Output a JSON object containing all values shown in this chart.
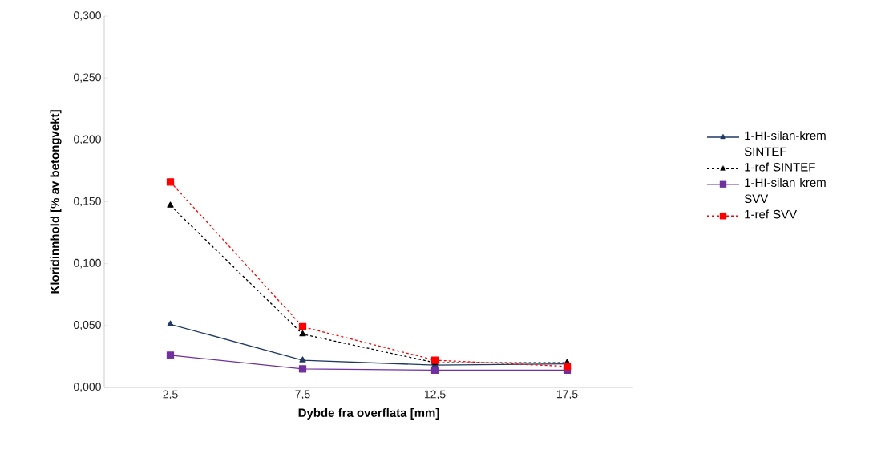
{
  "chart_data": {
    "type": "line",
    "xlabel": "Dybde fra overflata [mm]",
    "ylabel": "Kloridinnhold  [% av betongvekt]",
    "categories": [
      "2,5",
      "7,5",
      "12,5",
      "17,5"
    ],
    "ylim": [
      0,
      0.3
    ],
    "yticks": [
      {
        "value": 0,
        "label": "0,000"
      },
      {
        "value": 0.05,
        "label": "0,050"
      },
      {
        "value": 0.1,
        "label": "0,100"
      },
      {
        "value": 0.15,
        "label": "0,150"
      },
      {
        "value": 0.2,
        "label": "0,200"
      },
      {
        "value": 0.25,
        "label": "0,250"
      },
      {
        "value": 0.3,
        "label": "0,300"
      }
    ],
    "legend": "right",
    "grid": false,
    "series": [
      {
        "name": "1-HI-silan-krem SINTEF",
        "color": "#1f3864",
        "marker": "triangle",
        "line_style": "solid",
        "values": [
          0.051,
          0.022,
          0.018,
          0.019
        ]
      },
      {
        "name": "1-ref SINTEF",
        "color": "#000000",
        "marker": "triangle",
        "line_style": "dashed",
        "values": [
          0.147,
          0.043,
          0.02,
          0.02
        ]
      },
      {
        "name": "1-HI-silan krem SVV",
        "color": "#7030a0",
        "marker": "square",
        "line_style": "solid",
        "values": [
          0.026,
          0.015,
          0.014,
          0.014
        ]
      },
      {
        "name": "1-ref SVV",
        "color": "#ff0000",
        "marker": "square",
        "line_style": "dashed",
        "values": [
          0.166,
          0.049,
          0.022,
          0.017
        ]
      }
    ]
  }
}
